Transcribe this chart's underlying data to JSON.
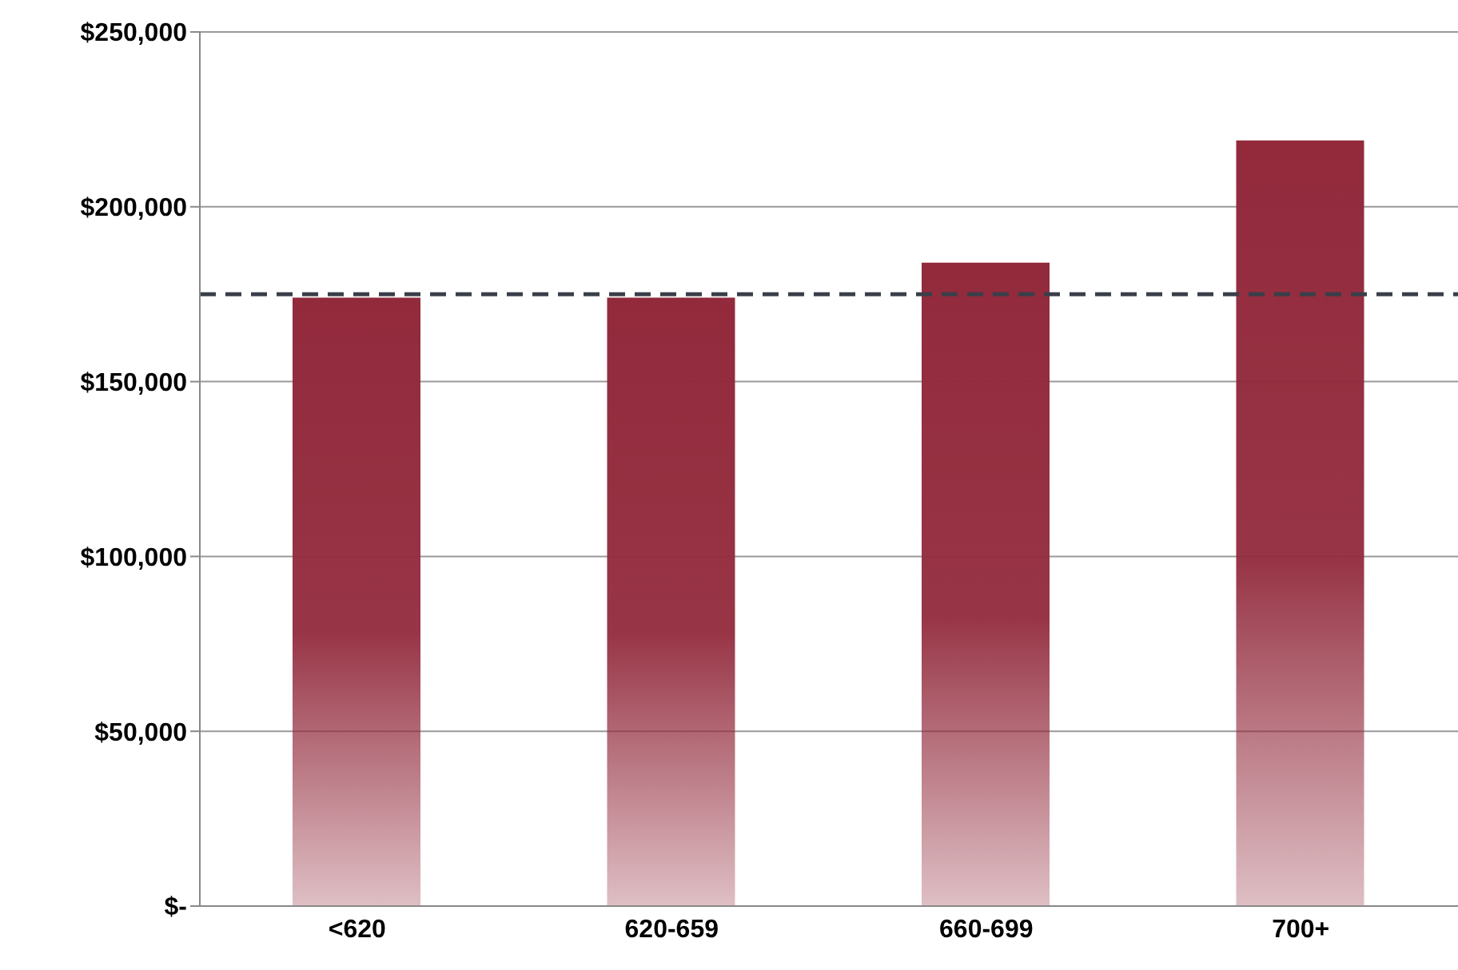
{
  "chart_data": {
    "type": "bar",
    "categories": [
      "<620",
      "620-659",
      "660-699",
      "700+"
    ],
    "series": [
      {
        "color": "#922a3c",
        "values": [
          174000,
          174000,
          184000,
          219000
        ]
      }
    ],
    "ylim": [
      0,
      250000
    ],
    "yticks": [
      {
        "value": 0,
        "label": "$-"
      },
      {
        "value": 50000,
        "label": "$50,000"
      },
      {
        "value": 100000,
        "label": "$100,000"
      },
      {
        "value": 150000,
        "label": "$150,000"
      },
      {
        "value": 200000,
        "label": "$200,000"
      },
      {
        "value": 250000,
        "label": "$250,000"
      }
    ],
    "grid": "y",
    "ref_lines": [
      {
        "axis": "y",
        "value": 175000,
        "label": null,
        "color": "#3a3f4a",
        "line_style": "dashed"
      }
    ]
  }
}
